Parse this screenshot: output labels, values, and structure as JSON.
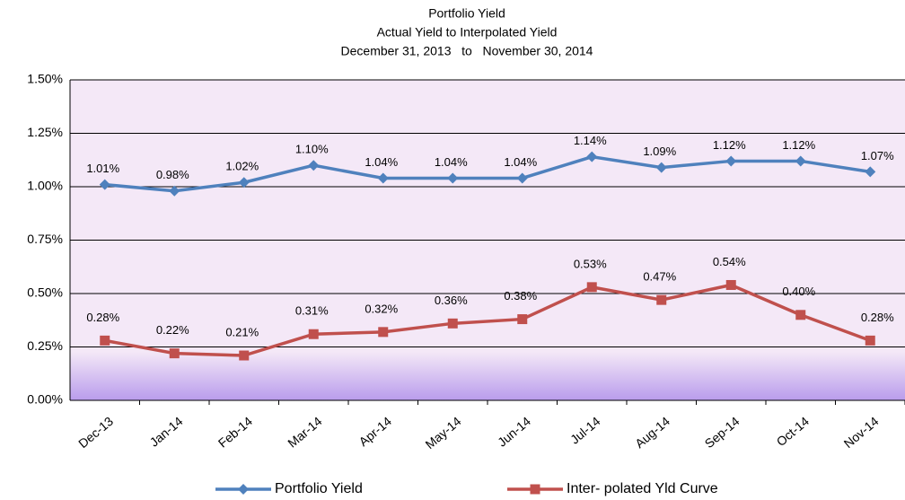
{
  "chart_data": {
    "type": "line",
    "title": "Portfolio Yield",
    "subtitle": [
      "Actual Yield to Interpolated Yield",
      "December 31, 2013   to   November 30, 2014"
    ],
    "categories": [
      "Dec-13",
      "Jan-14",
      "Feb-14",
      "Mar-14",
      "Apr-14",
      "May-14",
      "Jun-14",
      "Jul-14",
      "Aug-14",
      "Sep-14",
      "Oct-14",
      "Nov-14"
    ],
    "series": [
      {
        "name": "Portfolio Yield",
        "color": "#4f81bd",
        "marker": "diamond",
        "values": [
          1.01,
          0.98,
          1.02,
          1.1,
          1.04,
          1.04,
          1.04,
          1.14,
          1.09,
          1.12,
          1.12,
          1.07
        ],
        "value_labels": [
          "1.01%",
          "0.98%",
          "1.02%",
          "1.10%",
          "1.04%",
          "1.04%",
          "1.04%",
          "1.14%",
          "1.09%",
          "1.12%",
          "1.12%",
          "1.07%"
        ]
      },
      {
        "name": "Inter- polated Yld Curve",
        "color": "#c0504d",
        "marker": "square",
        "values": [
          0.28,
          0.22,
          0.21,
          0.31,
          0.32,
          0.36,
          0.38,
          0.53,
          0.47,
          0.54,
          0.4,
          0.28
        ],
        "value_labels": [
          "0.28%",
          "0.22%",
          "0.21%",
          "0.31%",
          "0.32%",
          "0.36%",
          "0.38%",
          "0.53%",
          "0.47%",
          "0.54%",
          "0.40%",
          "0.28%"
        ]
      }
    ],
    "ylim": [
      0,
      1.5
    ],
    "yticks": [
      {
        "value": 0,
        "label": "0.00%"
      },
      {
        "value": 0.25,
        "label": "0.25%"
      },
      {
        "value": 0.5,
        "label": "0.50%"
      },
      {
        "value": 0.75,
        "label": "0.75%"
      },
      {
        "value": 1.0,
        "label": "1.00%"
      },
      {
        "value": 1.25,
        "label": "1.25%"
      },
      {
        "value": 1.5,
        "label": "1.50%"
      }
    ],
    "grid": true,
    "legend": "bottom"
  }
}
